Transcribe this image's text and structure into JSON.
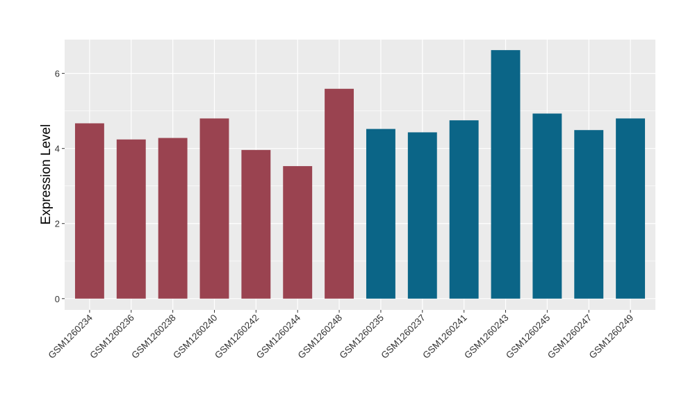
{
  "chart_data": {
    "type": "bar",
    "title": "",
    "xlabel": "",
    "ylabel": "Expression Level",
    "ylim": [
      -0.3,
      6.9
    ],
    "yticks": [
      0,
      2,
      4,
      6
    ],
    "grid": true,
    "categories": [
      "GSM1260234",
      "GSM1260236",
      "GSM1260238",
      "GSM1260240",
      "GSM1260242",
      "GSM1260244",
      "GSM1260248",
      "GSM1260235",
      "GSM1260237",
      "GSM1260241",
      "GSM1260243",
      "GSM1260245",
      "GSM1260247",
      "GSM1260249"
    ],
    "values": [
      4.67,
      4.24,
      4.28,
      4.8,
      3.96,
      3.53,
      5.59,
      4.52,
      4.43,
      4.75,
      6.62,
      4.93,
      4.49,
      4.8
    ],
    "groups": [
      0,
      0,
      0,
      0,
      0,
      0,
      0,
      1,
      1,
      1,
      1,
      1,
      1,
      1
    ],
    "group_colors": [
      "#9a4350",
      "#0b6587"
    ]
  }
}
